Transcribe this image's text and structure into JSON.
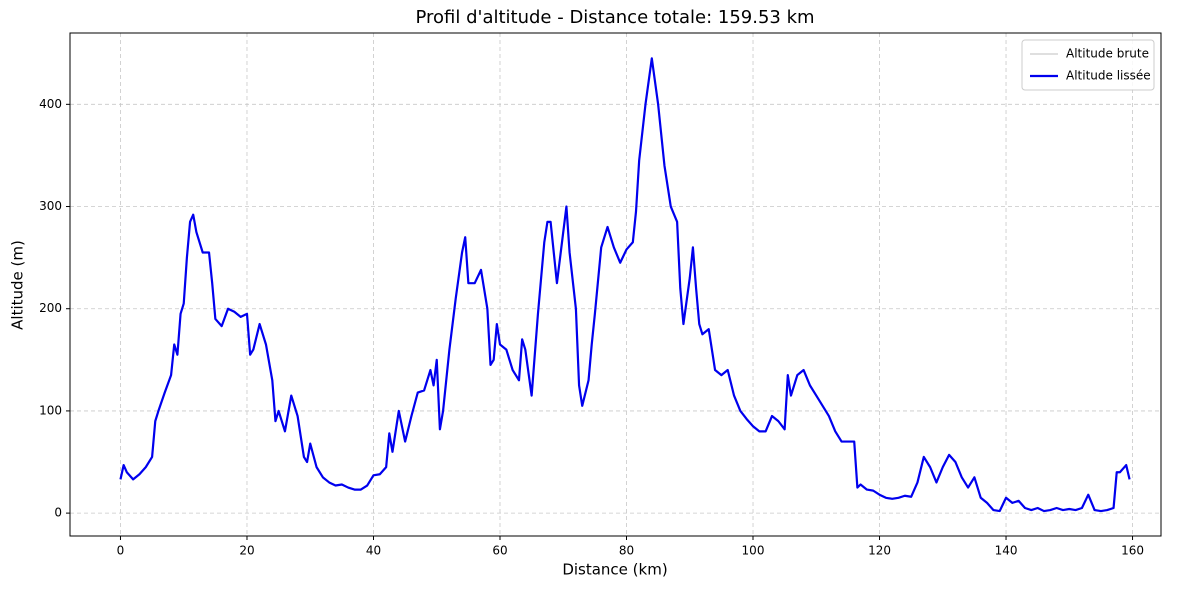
{
  "chart_data": {
    "type": "line",
    "title": "Profil d'altitude - Distance totale: 159.53 km",
    "x_label": "Distance (km)",
    "y_label": "Altitude (m)",
    "x": [
      0,
      0.5,
      1,
      2,
      3,
      4,
      5,
      5.5,
      6,
      7,
      8,
      8.5,
      9,
      9.5,
      10,
      10.5,
      11,
      11.5,
      12,
      13,
      14,
      14.5,
      15,
      16,
      17,
      18,
      19,
      20,
      20.5,
      21,
      22,
      23,
      24,
      24.5,
      25,
      26,
      27,
      28,
      29,
      29.5,
      30,
      31,
      32,
      33,
      34,
      35,
      36,
      37,
      38,
      39,
      40,
      41,
      42,
      42.5,
      43,
      44,
      45,
      46,
      47,
      48,
      49,
      49.5,
      50,
      50.5,
      51,
      52,
      53,
      54,
      54.5,
      55,
      56,
      57,
      58,
      58.5,
      59,
      59.5,
      60,
      61,
      62,
      63,
      63.5,
      64,
      65,
      66,
      67,
      67.5,
      68,
      69,
      70,
      70.5,
      71,
      72,
      72.5,
      73,
      74,
      74.5,
      75,
      76,
      77,
      78,
      79,
      80,
      81,
      81.5,
      82,
      83,
      84,
      85,
      86,
      87,
      88,
      88.5,
      89,
      90,
      90.5,
      91,
      91.5,
      92,
      93,
      94,
      95,
      96,
      97,
      98,
      99,
      100,
      101,
      102,
      103,
      104,
      105,
      105.5,
      106,
      107,
      108,
      109,
      110,
      111,
      112,
      113,
      114,
      115,
      116,
      116.5,
      117,
      118,
      119,
      120,
      121,
      122,
      123,
      124,
      125,
      126,
      127,
      128,
      129,
      130,
      131,
      132,
      133,
      134,
      135,
      136,
      137,
      138,
      139,
      140,
      141,
      142,
      143,
      144,
      145,
      146,
      147,
      148,
      149,
      150,
      151,
      152,
      153,
      154,
      155,
      156,
      157,
      157.5,
      158,
      159,
      159.53
    ],
    "series": [
      {
        "name": "Altitude brute",
        "color": "#cccccc",
        "width": 1.2,
        "values": [
          33,
          47,
          40,
          33,
          38,
          45,
          55,
          90,
          100,
          118,
          135,
          165,
          155,
          195,
          205,
          250,
          285,
          292,
          275,
          255,
          255,
          225,
          190,
          183,
          200,
          197,
          192,
          195,
          155,
          160,
          185,
          165,
          130,
          90,
          100,
          80,
          115,
          95,
          55,
          50,
          68,
          45,
          35,
          30,
          27,
          28,
          25,
          23,
          23,
          27,
          37,
          38,
          45,
          78,
          60,
          100,
          70,
          95,
          118,
          120,
          140,
          125,
          150,
          82,
          100,
          160,
          210,
          255,
          270,
          225,
          225,
          238,
          200,
          145,
          150,
          185,
          165,
          160,
          140,
          130,
          170,
          160,
          115,
          195,
          265,
          285,
          285,
          225,
          275,
          300,
          255,
          200,
          125,
          105,
          130,
          165,
          195,
          260,
          280,
          260,
          245,
          258,
          265,
          295,
          345,
          400,
          445,
          400,
          340,
          300,
          285,
          220,
          185,
          230,
          260,
          220,
          185,
          175,
          180,
          140,
          135,
          140,
          115,
          100,
          92,
          85,
          80,
          80,
          95,
          90,
          82,
          135,
          115,
          135,
          140,
          125,
          115,
          105,
          95,
          80,
          70,
          70,
          70,
          25,
          28,
          23,
          22,
          18,
          15,
          14,
          15,
          17,
          16,
          30,
          55,
          45,
          30,
          45,
          57,
          50,
          35,
          25,
          35,
          15,
          10,
          3,
          2,
          15,
          10,
          12,
          5,
          3,
          5,
          2,
          3,
          5,
          3,
          4,
          3,
          5,
          18,
          3,
          2,
          3,
          5,
          40,
          40,
          47,
          33
        ]
      },
      {
        "name": "Altitude lissée",
        "color": "#0000ee",
        "width": 2.2,
        "values": [
          33,
          47,
          40,
          33,
          38,
          45,
          55,
          90,
          100,
          118,
          135,
          165,
          155,
          195,
          205,
          250,
          285,
          292,
          275,
          255,
          255,
          225,
          190,
          183,
          200,
          197,
          192,
          195,
          155,
          160,
          185,
          165,
          130,
          90,
          100,
          80,
          115,
          95,
          55,
          50,
          68,
          45,
          35,
          30,
          27,
          28,
          25,
          23,
          23,
          27,
          37,
          38,
          45,
          78,
          60,
          100,
          70,
          95,
          118,
          120,
          140,
          125,
          150,
          82,
          100,
          160,
          210,
          255,
          270,
          225,
          225,
          238,
          200,
          145,
          150,
          185,
          165,
          160,
          140,
          130,
          170,
          160,
          115,
          195,
          265,
          285,
          285,
          225,
          275,
          300,
          255,
          200,
          125,
          105,
          130,
          165,
          195,
          260,
          280,
          260,
          245,
          258,
          265,
          295,
          345,
          400,
          445,
          400,
          340,
          300,
          285,
          220,
          185,
          230,
          260,
          220,
          185,
          175,
          180,
          140,
          135,
          140,
          115,
          100,
          92,
          85,
          80,
          80,
          95,
          90,
          82,
          135,
          115,
          135,
          140,
          125,
          115,
          105,
          95,
          80,
          70,
          70,
          70,
          25,
          28,
          23,
          22,
          18,
          15,
          14,
          15,
          17,
          16,
          30,
          55,
          45,
          30,
          45,
          57,
          50,
          35,
          25,
          35,
          15,
          10,
          3,
          2,
          15,
          10,
          12,
          5,
          3,
          5,
          2,
          3,
          5,
          3,
          4,
          3,
          5,
          18,
          3,
          2,
          3,
          5,
          40,
          40,
          47,
          33
        ]
      }
    ],
    "xlim": [
      -7.98,
      164.5
    ],
    "ylim": [
      -22.4,
      469.8
    ],
    "xticks": [
      0,
      20,
      40,
      60,
      80,
      100,
      120,
      140,
      160
    ],
    "yticks": [
      0,
      100,
      200,
      300,
      400
    ],
    "grid": true,
    "legend": "upper-right"
  }
}
